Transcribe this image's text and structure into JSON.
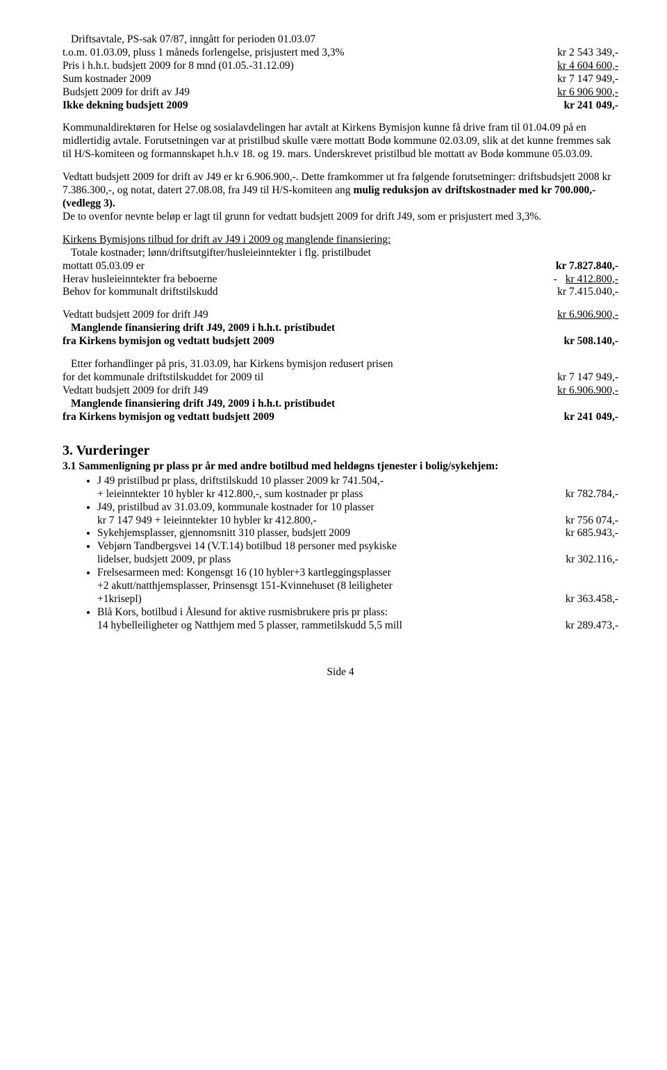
{
  "block1": {
    "l1": "Driftsavtale, PS-sak 07/87, inngått for perioden 01.03.07",
    "l2a": "t.o.m. 01.03.09, pluss 1 måneds forlengelse, prisjustert med 3,3%",
    "l2b": "kr 2 543 349,-",
    "l3a": "Pris i h.h.t. budsjett 2009 for 8 mnd (01.05.-31.12.09)",
    "l3b": "kr 4 604 600,-",
    "l4a": "Sum kostnader 2009",
    "l4b": "kr 7 147 949,-",
    "l5a": "Budsjett 2009 for drift av J49",
    "l5b": "kr  6 906 900,-",
    "l6a": "Ikke dekning budsjett 2009",
    "l6b": "kr    241 049,-"
  },
  "para1": "Kommunaldirektøren for Helse og sosialavdelingen har avtalt at Kirkens Bymisjon kunne få drive fram til 01.04.09 på en midlertidig avtale. Forutsetningen var at pristilbud skulle være mottatt Bodø kommune 02.03.09, slik at det kunne fremmes sak til H/S-komiteen og formannskapet h.h.v 18. og 19. mars. Underskrevet pristilbud ble mottatt av Bodø kommune 05.03.09.",
  "para2": {
    "a": "Vedtatt budsjett 2009 for drift av J49 er kr 6.906.900,-. Dette framkommer ut fra følgende forutsetninger: driftsbudsjett 2008 kr 7.386.300,-, og notat, datert 27.08.08, fra J49 til H/S-komiteen ang ",
    "b": "mulig reduksjon av driftskostnader med kr 700.000,- (vedlegg 3).",
    "c": "De to ovenfor nevnte beløp er lagt til grunn for vedtatt budsjett 2009 for drift J49, som er prisjustert med 3,3%."
  },
  "block2head": "Kirkens Bymisjons tilbud for drift av J49 i 2009 og manglende finansiering:",
  "block2": {
    "l1": "Totale kostnader; lønn/driftsutgifter/husleieinntekter i flg. pristilbudet",
    "l2a": "mottatt 05.03.09 er",
    "l2b": "kr 7.827.840,-",
    "l3a": "Herav husleieinntekter fra beboerne",
    "l3mid": "-",
    "l3b": "kr     412.800,-",
    "l4a": "Behov for kommunalt driftstilskudd",
    "l4b": "kr 7.415.040,-"
  },
  "block3": {
    "l1a": "Vedtatt budsjett 2009 for drift J49",
    "l1b": "kr 6.906.900,-",
    "l2a": "Manglende finansiering drift J49, 2009 i h.h.t. pristibudet",
    "l3a": "fra Kirkens bymisjon og vedtatt budsjett 2009",
    "l3b": "kr  508.140,-"
  },
  "block4": {
    "l1": "Etter forhandlinger på pris, 31.03.09, har Kirkens bymisjon redusert prisen",
    "l2a": "for det kommunale driftstilskuddet for 2009 til",
    "l2b": "kr 7 147 949,-",
    "l3a": "Vedtatt budsjett 2009 for drift J49",
    "l3b": "kr 6.906.900,-",
    "l4a": "Manglende finansiering drift J49, 2009 i h.h.t. pristibudet",
    "l5a": "fra Kirkens bymisjon og vedtatt budsjett 2009",
    "l5b": "kr 241 049,-"
  },
  "sec3title": "3. Vurderinger",
  "sec31title": "3.1 Sammenligning pr plass pr år med andre botilbud med heldøgns tjenester i bolig/sykehjem:",
  "bullets": [
    {
      "lines": [
        "J 49 pristilbud pr plass, driftstilskudd 10 plasser 2009 kr 741.504,-"
      ],
      "final": {
        "l": "+ leieinntekter 10 hybler kr 412.800,-, sum kostnader pr plass",
        "r": "kr   782.784,-"
      }
    },
    {
      "lines": [
        "J49, pristilbud av 31.03.09, kommunale kostnader for 10 plasser"
      ],
      "final": {
        "l": "kr 7 147 949 + leieinntekter 10 hybler kr 412.800,-",
        "r": "kr   756 074,-"
      }
    },
    {
      "lines": [],
      "final": {
        "l": "Sykehjemsplasser, gjennomsnitt 310 plasser, budsjett 2009",
        "r": "kr   685.943,-"
      }
    },
    {
      "lines": [
        "Vebjørn Tandbergsvei 14 (V.T.14) botilbud 18 personer med psykiske"
      ],
      "final": {
        "l": "lidelser, budsjett 2009, pr plass",
        "r": "kr  302.116,-"
      }
    },
    {
      "lines": [
        "Frelsesarmeen med: Kongensgt 16 (10 hybler+3 kartleggingsplasser",
        "+2 akutt/natthjemsplasser, Prinsensgt 151-Kvinnehuset (8 leiligheter"
      ],
      "final": {
        "l": "+1krisepl)",
        "r": "kr  363.458,-"
      }
    },
    {
      "lines": [
        "Blå Kors, botilbud i Ålesund for aktive rusmisbrukere pris pr plass:"
      ],
      "final": {
        "l": "14 hybelleiligheter og Natthjem med 5 plasser, rammetilskudd 5,5 mill",
        "r": "kr  289.473,-"
      }
    }
  ],
  "footer": "Side 4"
}
